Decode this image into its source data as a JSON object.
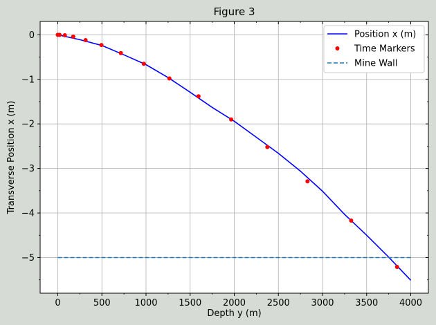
{
  "chart_data": {
    "type": "line",
    "title": "Figure 3",
    "xlabel": "Depth y (m)",
    "ylabel": "Transverse Position x (m)",
    "xlim": [
      -200,
      4200
    ],
    "ylim": [
      -5.8,
      0.3
    ],
    "xticks": [
      0,
      500,
      1000,
      1500,
      2000,
      2500,
      3000,
      3500,
      4000
    ],
    "yticks": [
      0,
      -1,
      -2,
      -3,
      -4,
      -5
    ],
    "xtick_labels": [
      "0",
      "500",
      "1000",
      "1500",
      "2000",
      "2500",
      "3000",
      "3500",
      "4000"
    ],
    "ytick_labels": [
      "0",
      "−1",
      "−2",
      "−3",
      "−4",
      "−5"
    ],
    "grid": true,
    "legend_position": "top-right",
    "series": [
      {
        "name": "Position x (m)",
        "kind": "line",
        "color": "#0000ff",
        "x": [
          0,
          250,
          500,
          750,
          1000,
          1250,
          1500,
          1750,
          2000,
          2250,
          2500,
          2750,
          3000,
          3250,
          3500,
          3750,
          4000
        ],
        "y": [
          0,
          -0.11,
          -0.24,
          -0.45,
          -0.67,
          -0.96,
          -1.29,
          -1.63,
          -1.94,
          -2.3,
          -2.66,
          -3.06,
          -3.51,
          -4.03,
          -4.5,
          -4.99,
          -5.51
        ]
      },
      {
        "name": "Time Markers",
        "kind": "markers",
        "color": "#ff0000",
        "x": [
          0,
          20,
          80,
          175,
          315,
          495,
          715,
          975,
          1265,
          1595,
          1965,
          2375,
          2830,
          3325,
          3845
        ],
        "y": [
          0,
          0,
          -0.01,
          -0.04,
          -0.12,
          -0.23,
          -0.41,
          -0.65,
          -0.98,
          -1.38,
          -1.9,
          -2.52,
          -3.29,
          -4.17,
          -5.21
        ]
      },
      {
        "name": "Mine Wall",
        "kind": "dashed",
        "color": "#1f77b4",
        "x": [
          0,
          4000
        ],
        "y": [
          -5,
          -5
        ]
      }
    ]
  }
}
